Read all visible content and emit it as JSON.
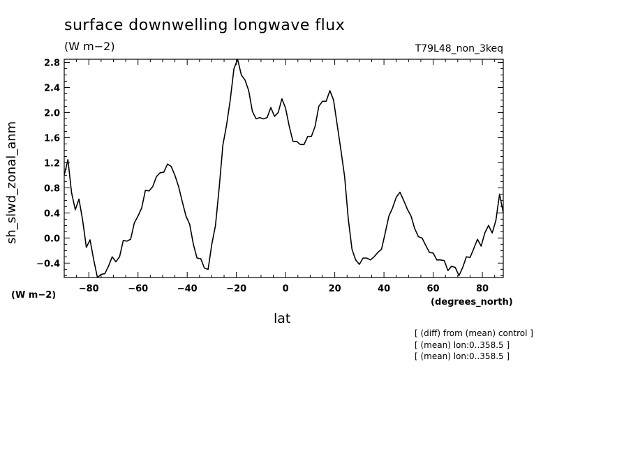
{
  "chart_data": {
    "type": "line",
    "title": "surface downwelling longwave flux",
    "units_label": "(W m−2)",
    "run_label": "T79L48_non_3keq",
    "ylabel": "sh_slwd_zonal_anm",
    "y_units": "(W m−2)",
    "xlabel": "lat",
    "x_units": "(degrees_north)",
    "xlim": [
      -90,
      88.5
    ],
    "ylim": [
      -0.63,
      2.85
    ],
    "x_ticks": [
      -80,
      -60,
      -40,
      -20,
      0,
      20,
      40,
      60,
      80
    ],
    "x_tick_labels": [
      "−80",
      "−60",
      "−40",
      "−20",
      "0",
      "20",
      "40",
      "60",
      "80"
    ],
    "y_ticks": [
      -0.4,
      0.0,
      0.4,
      0.8,
      1.2,
      1.6,
      2.0,
      2.4,
      2.8
    ],
    "y_tick_labels": [
      "−0.4",
      "0.0",
      "0.4",
      "0.8",
      "1.2",
      "1.6",
      "2.0",
      "2.4",
      "2.8"
    ],
    "grid": false,
    "series": [
      {
        "x": [
          -90,
          -88.5,
          -87,
          -85.5,
          -84,
          -82.5,
          -81,
          -79.5,
          -78,
          -76.5,
          -75,
          -73.5,
          -72,
          -70.5,
          -69,
          -67.5,
          -66,
          -64.5,
          -63,
          -61.5,
          -60,
          -58.5,
          -57,
          -55.5,
          -54,
          -52.5,
          -51,
          -49.5,
          -48,
          -46.5,
          -45,
          -43.5,
          -42,
          -40.5,
          -39,
          -37.5,
          -36,
          -34.5,
          -33,
          -31.5,
          -30,
          -28.5,
          -27,
          -25.5,
          -24,
          -22.5,
          -21,
          -19.5,
          -18,
          -16.5,
          -15,
          -13.5,
          -12,
          -10.5,
          -9,
          -7.5,
          -6,
          -4.5,
          -3,
          -1.5,
          0,
          1.5,
          3,
          4.5,
          6,
          7.5,
          9,
          10.5,
          12,
          13.5,
          15,
          16.5,
          18,
          19.5,
          21,
          22.5,
          24,
          25.5,
          27,
          28.5,
          30,
          31.5,
          33,
          34.5,
          36,
          37.5,
          39,
          40.5,
          42,
          43.5,
          45,
          46.5,
          48,
          49.5,
          51,
          52.5,
          54,
          55.5,
          57,
          58.5,
          60,
          61.5,
          63,
          64.5,
          66,
          67.5,
          69,
          70.5,
          72,
          73.5,
          75,
          76.5,
          78,
          79.5,
          81,
          82.5,
          84,
          85.5,
          87,
          88.5
        ],
        "y": [
          1.0,
          1.25,
          0.72,
          0.45,
          0.62,
          0.28,
          -0.15,
          -0.03,
          -0.35,
          -0.63,
          -0.58,
          -0.57,
          -0.45,
          -0.3,
          -0.38,
          -0.3,
          -0.04,
          -0.05,
          -0.02,
          0.24,
          0.35,
          0.48,
          0.76,
          0.75,
          0.82,
          0.98,
          1.04,
          1.05,
          1.18,
          1.14,
          1.0,
          0.82,
          0.58,
          0.35,
          0.22,
          -0.1,
          -0.32,
          -0.33,
          -0.48,
          -0.5,
          -0.1,
          0.2,
          0.8,
          1.48,
          1.8,
          2.2,
          2.7,
          2.85,
          2.6,
          2.52,
          2.35,
          2.02,
          1.9,
          1.92,
          1.9,
          1.92,
          2.08,
          1.94,
          2.0,
          2.22,
          2.07,
          1.78,
          1.54,
          1.54,
          1.49,
          1.49,
          1.62,
          1.62,
          1.78,
          2.1,
          2.18,
          2.18,
          2.35,
          2.2,
          1.8,
          1.4,
          0.98,
          0.3,
          -0.18,
          -0.35,
          -0.42,
          -0.32,
          -0.32,
          -0.35,
          -0.3,
          -0.23,
          -0.18,
          0.08,
          0.35,
          0.48,
          0.65,
          0.73,
          0.6,
          0.46,
          0.35,
          0.15,
          0.02,
          0.0,
          -0.12,
          -0.23,
          -0.24,
          -0.35,
          -0.35,
          -0.36,
          -0.52,
          -0.45,
          -0.47,
          -0.6,
          -0.47,
          -0.3,
          -0.31,
          -0.17,
          -0.02,
          -0.13,
          0.08,
          0.2,
          0.08,
          0.28,
          0.7,
          0.4
        ]
      }
    ],
    "annotations": [
      "[ (diff) from (mean) control ]",
      "[ (mean) lon:0..358.5 ]",
      "[ (mean) lon:0..358.5 ]"
    ]
  }
}
